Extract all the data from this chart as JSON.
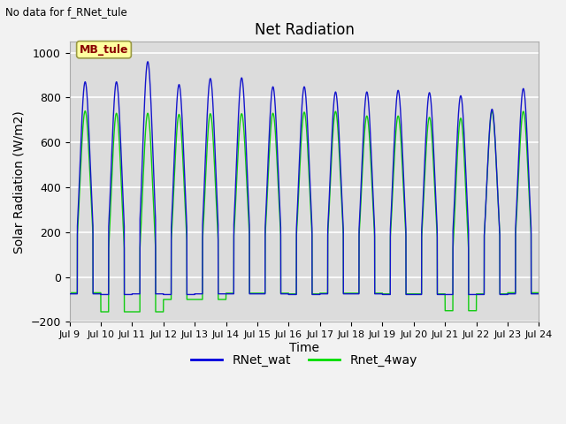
{
  "title": "Net Radiation",
  "xlabel": "Time",
  "ylabel": "Solar Radiation (W/m2)",
  "top_left_text": "No data for f_RNet_tule",
  "legend_label_text": "MB_tule",
  "legend_entries": [
    "RNet_wat",
    "Rnet_4way"
  ],
  "legend_colors": [
    "#0000dd",
    "#00dd00"
  ],
  "ylim": [
    -200,
    1050
  ],
  "yticks": [
    -200,
    0,
    200,
    400,
    600,
    800,
    1000
  ],
  "start_day": 9,
  "end_day": 24,
  "background_color": "#dcdcdc",
  "grid_color": "#ffffff",
  "line_color_blue": "#1515cc",
  "line_color_green": "#11cc11",
  "fig_width": 6.4,
  "fig_height": 4.8,
  "dpi": 100
}
